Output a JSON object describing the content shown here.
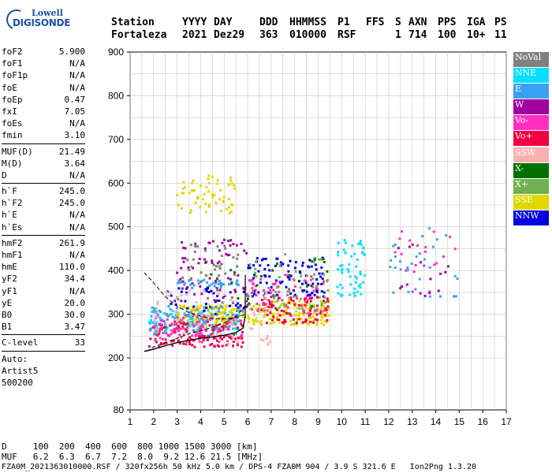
{
  "header": {
    "labels": [
      "Station",
      "YYYY",
      "DAY",
      "DDD",
      "HHMMSS",
      "P1",
      "FFS",
      "S",
      "AXN",
      "PPS",
      "IGA",
      "PS"
    ],
    "values": [
      "Fortaleza",
      "2021",
      "Dez29",
      "363",
      "010000",
      "RSF",
      "",
      "1",
      "714",
      "100",
      "10+",
      "11"
    ]
  },
  "logo": {
    "line1": "Lowell",
    "line2": "DIGISONDE"
  },
  "sidebar": {
    "group1": [
      {
        "k": "foF2",
        "v": "5.900"
      },
      {
        "k": "foF1",
        "v": "N/A"
      },
      {
        "k": "foF1p",
        "v": "N/A"
      },
      {
        "k": "foE",
        "v": "N/A"
      },
      {
        "k": "foEp",
        "v": "0.47"
      },
      {
        "k": "fxI",
        "v": "7.05"
      },
      {
        "k": "foEs",
        "v": "N/A"
      },
      {
        "k": "fmin",
        "v": "3.10"
      }
    ],
    "group2": [
      {
        "k": "MUF(D)",
        "v": "21.49"
      },
      {
        "k": "M(D)",
        "v": "3.64"
      },
      {
        "k": "D",
        "v": "N/A"
      }
    ],
    "group3": [
      {
        "k": "h`F",
        "v": "245.0"
      },
      {
        "k": "h`F2",
        "v": "245.0"
      },
      {
        "k": "h`E",
        "v": "N/A"
      },
      {
        "k": "h`Es",
        "v": "N/A"
      }
    ],
    "group4": [
      {
        "k": "hmF2",
        "v": "261.9"
      },
      {
        "k": "hmF1",
        "v": "N/A"
      },
      {
        "k": "hmE",
        "v": "110.0"
      },
      {
        "k": "yF2",
        "v": "34.4"
      },
      {
        "k": "yF1",
        "v": "N/A"
      },
      {
        "k": "yE",
        "v": "20.0"
      },
      {
        "k": "B0",
        "v": "30.0"
      },
      {
        "k": "B1",
        "v": "3.47"
      }
    ],
    "clevel": {
      "k": "C-level",
      "v": "33"
    },
    "auto": [
      "Auto:",
      "Artist5",
      "500200"
    ]
  },
  "legend": [
    {
      "label": "NoVal",
      "color": "#808080"
    },
    {
      "label": "NNE",
      "color": "#00e0ff"
    },
    {
      "label": "E",
      "color": "#3ca0f0"
    },
    {
      "label": "W",
      "color": "#a000a0"
    },
    {
      "label": "Vo-",
      "color": "#ff30c0"
    },
    {
      "label": "Vo+",
      "color": "#f00040"
    },
    {
      "label": "SSW",
      "color": "#ffb0b0"
    },
    {
      "label": "X-",
      "color": "#007000"
    },
    {
      "label": "X+",
      "color": "#70b050"
    },
    {
      "label": "SSE",
      "color": "#e0d800"
    },
    {
      "label": "NNW",
      "color": "#0000e0"
    }
  ],
  "footer": {
    "d_line": "D     100  200  400  600  800 1000 1500 3000 [km]",
    "muf_line": "MUF   6.2  6.3  6.7  7.2  8.0  9.2 12.6 21.5 [MHz]",
    "file_line": "FZA0M_2021363010000.RSF / 320fx256h 50 kHz 5.0 km / DPS-4 FZA0M 904 / 3.9 S 321.6 E   Ion2Png 1.3.20"
  },
  "chart_data": {
    "type": "scatter",
    "xlabel": "",
    "ylabel": "",
    "xlim": [
      1,
      17
    ],
    "ylim": [
      80,
      900
    ],
    "xticks": [
      1,
      2,
      3,
      4,
      5,
      6,
      7,
      8,
      9,
      10,
      11,
      12,
      13,
      14,
      15,
      16,
      17
    ],
    "yticks": [
      80,
      200,
      300,
      400,
      500,
      600,
      700,
      800,
      900
    ],
    "grid": true,
    "clusters": [
      {
        "color": "#e0d800",
        "x": [
          3.0,
          5.9
        ],
        "y": [
          270,
          320
        ],
        "n": 160
      },
      {
        "color": "#e0d800",
        "x": [
          6.0,
          9.5
        ],
        "y": [
          275,
          330
        ],
        "n": 150
      },
      {
        "color": "#e0d800",
        "x": [
          3.0,
          5.5
        ],
        "y": [
          530,
          620
        ],
        "n": 60
      },
      {
        "color": "#3ca0f0",
        "x": [
          1.8,
          5.8
        ],
        "y": [
          260,
          320
        ],
        "n": 110
      },
      {
        "color": "#3ca0f0",
        "x": [
          3.0,
          5.8
        ],
        "y": [
          360,
          380
        ],
        "n": 40
      },
      {
        "color": "#00e0ff",
        "x": [
          1.8,
          5.8
        ],
        "y": [
          250,
          310
        ],
        "n": 80
      },
      {
        "color": "#00e0ff",
        "x": [
          9.8,
          11.0
        ],
        "y": [
          340,
          470
        ],
        "n": 60
      },
      {
        "color": "#f00040",
        "x": [
          1.8,
          5.8
        ],
        "y": [
          225,
          285
        ],
        "n": 130
      },
      {
        "color": "#f00040",
        "x": [
          6.5,
          9.5
        ],
        "y": [
          280,
          340
        ],
        "n": 80
      },
      {
        "color": "#ff30c0",
        "x": [
          2.0,
          5.8
        ],
        "y": [
          235,
          300
        ],
        "n": 90
      },
      {
        "color": "#ff30c0",
        "x": [
          5.8,
          9.3
        ],
        "y": [
          300,
          390
        ],
        "n": 80
      },
      {
        "color": "#a000a0",
        "x": [
          3.0,
          6.0
        ],
        "y": [
          330,
          470
        ],
        "n": 60
      },
      {
        "color": "#0000e0",
        "x": [
          6.0,
          9.3
        ],
        "y": [
          340,
          430
        ],
        "n": 90
      },
      {
        "color": "#0000e0",
        "x": [
          2.5,
          6.0
        ],
        "y": [
          300,
          360
        ],
        "n": 40
      },
      {
        "color": "#70b050",
        "x": [
          6.0,
          9.5
        ],
        "y": [
          300,
          440
        ],
        "n": 50
      },
      {
        "color": "#007000",
        "x": [
          4.0,
          9.5
        ],
        "y": [
          300,
          430
        ],
        "n": 25
      },
      {
        "color": "#ffb0b0",
        "x": [
          2.0,
          7.0
        ],
        "y": [
          230,
          360
        ],
        "n": 70
      },
      {
        "color": "#808080",
        "x": [
          3.0,
          6.0
        ],
        "y": [
          320,
          460
        ],
        "n": 40
      },
      {
        "color": "#3ca0f0",
        "x": [
          12.0,
          15.0
        ],
        "y": [
          340,
          500
        ],
        "n": 30
      },
      {
        "color": "#ff30c0",
        "x": [
          12.0,
          15.0
        ],
        "y": [
          340,
          490
        ],
        "n": 20
      },
      {
        "color": "#a000a0",
        "x": [
          12.0,
          14.6
        ],
        "y": [
          340,
          490
        ],
        "n": 15
      }
    ],
    "profile_curve": {
      "x": [
        1.6,
        2.0,
        2.5,
        3.0,
        3.5,
        4.0,
        4.5,
        5.0,
        5.5,
        5.8,
        5.9
      ],
      "y": [
        215,
        220,
        228,
        235,
        240,
        245,
        248,
        252,
        258,
        268,
        295
      ]
    },
    "trace_upper": {
      "x": [
        1.6,
        2.0,
        2.5,
        3.0,
        3.5,
        4.0,
        4.5,
        5.0,
        5.5,
        5.9
      ],
      "y": [
        395,
        372,
        340,
        318,
        304,
        295,
        290,
        290,
        292,
        300
      ]
    },
    "trace_lower": {
      "x": [
        1.7,
        2.0,
        2.5,
        3.0,
        3.5,
        4.0,
        4.5,
        5.0,
        5.5,
        5.9
      ],
      "y": [
        215,
        225,
        235,
        245,
        255,
        262,
        270,
        280,
        295,
        320
      ]
    },
    "vertical_mark": {
      "x": 5.9,
      "y": [
        295,
        390
      ]
    }
  }
}
